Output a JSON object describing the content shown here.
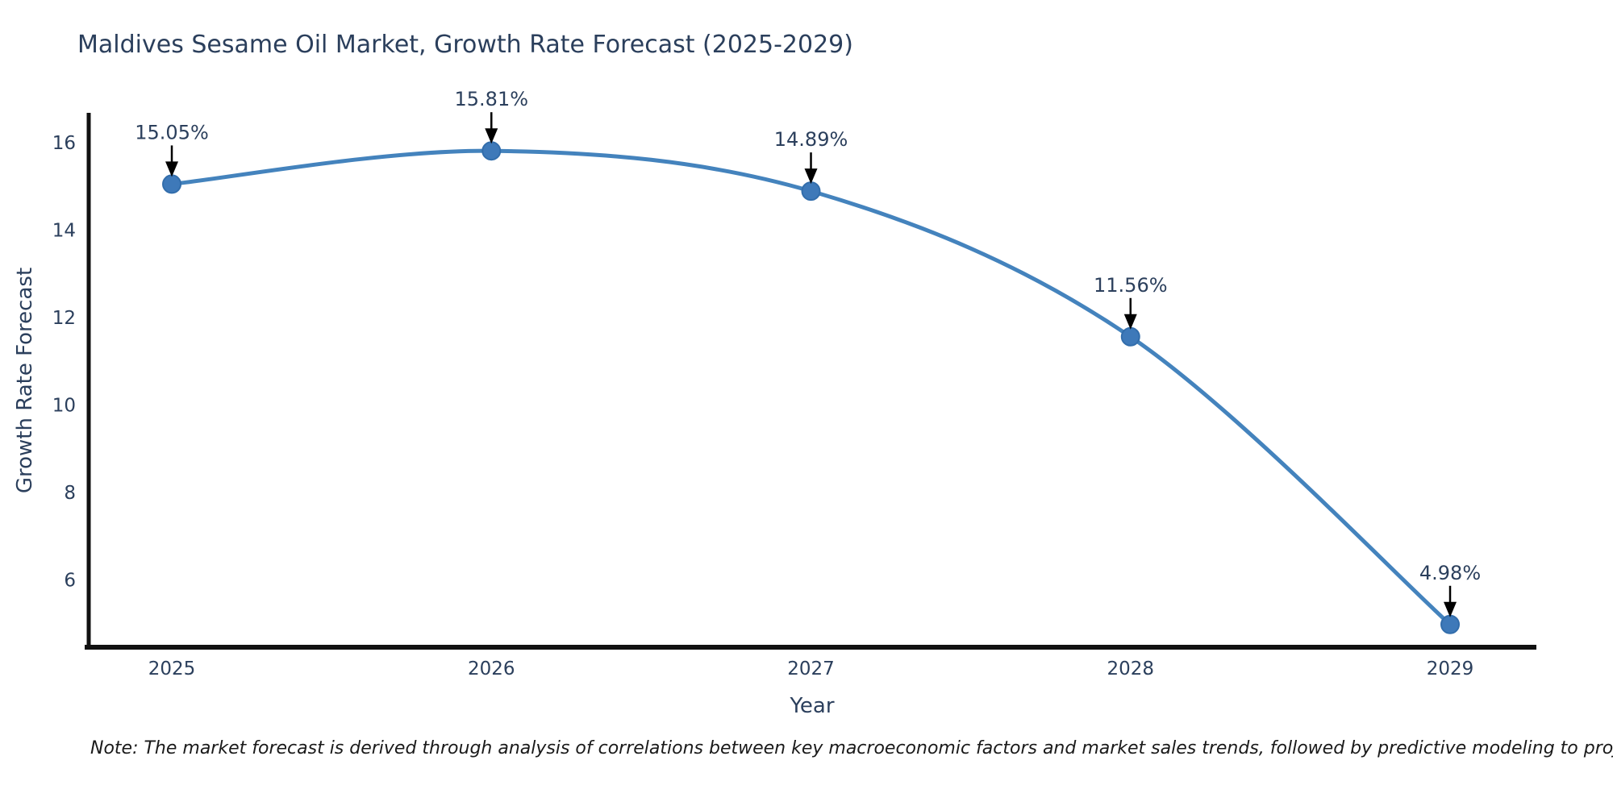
{
  "figure": {
    "note": "Note: The market forecast is derived through analysis of correlations between key macroeconomic factors and market sales trends, followed by predictive modeling to project future sales"
  },
  "chart_data": {
    "type": "line",
    "title": "Maldives Sesame Oil Market, Growth Rate Forecast (2025-2029)",
    "xlabel": "Year",
    "ylabel": "Growth Rate Forecast",
    "x": [
      2025,
      2026,
      2027,
      2028,
      2029
    ],
    "series": [
      {
        "name": "Growth Rate Forecast",
        "values": [
          15.05,
          15.81,
          14.89,
          11.56,
          4.98
        ],
        "point_labels": [
          "15.05%",
          "15.81%",
          "14.89%",
          "11.56%",
          "4.98%"
        ]
      }
    ],
    "xticks": [
      "2025",
      "2026",
      "2027",
      "2028",
      "2029"
    ],
    "yticks": [
      6,
      8,
      10,
      12,
      14,
      16
    ],
    "ylim": [
      4.46,
      16.68
    ],
    "xlim": [
      2024.74,
      2029.27
    ],
    "grid": false,
    "legend": "none",
    "annotations_have_arrows": true,
    "colors": {
      "line": "#4483bd",
      "marker_fill": "#3e79b9",
      "marker_edge": "#326dab",
      "axis": "#111111",
      "chart_text": "#2b3f5c",
      "annotation_text": "#2b3f5c",
      "arrow": "#000000",
      "note_text": "#1a1a1a",
      "background": "#ffffff"
    }
  }
}
